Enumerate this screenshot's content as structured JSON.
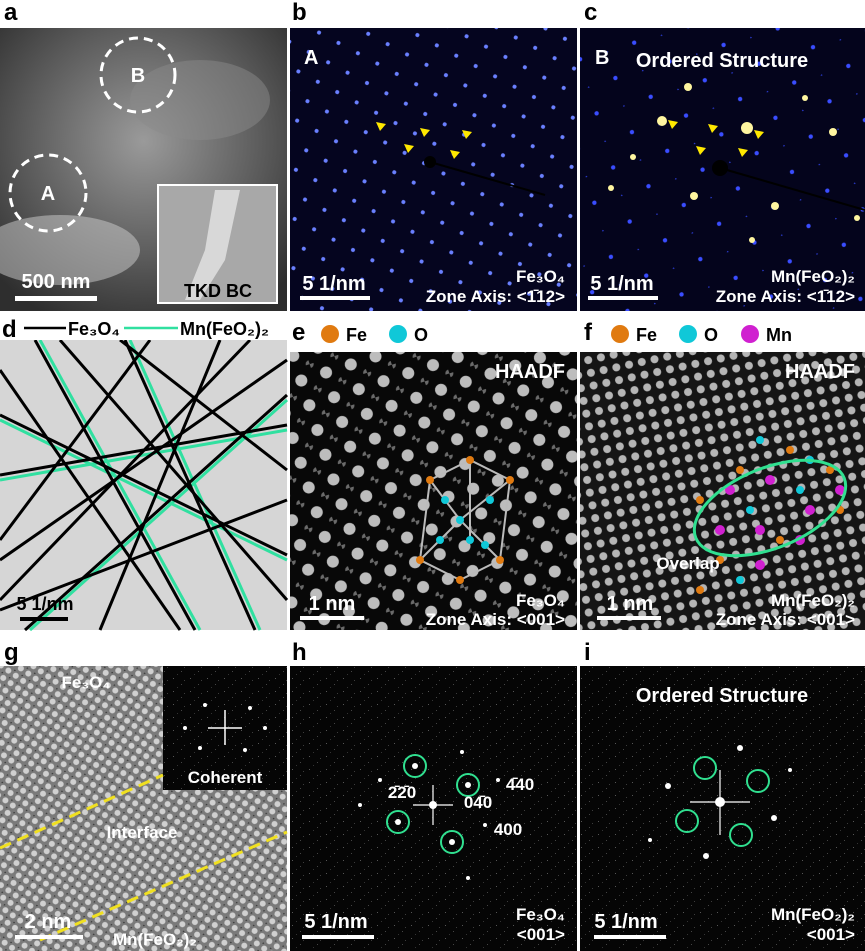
{
  "panels": {
    "a": {
      "label": "a",
      "circle_b": "B",
      "circle_a": "A",
      "scale_bar": "500 nm",
      "inset": "TKD BC"
    },
    "b": {
      "label": "b",
      "region": "A",
      "scale_bar": "5 1/nm",
      "phase": "Fe₃O₄",
      "zone_axis": "Zone Axis: <1̄12>"
    },
    "c": {
      "label": "c",
      "region": "B",
      "title": "Ordered Structure",
      "scale_bar": "5 1/nm",
      "phase": "Mn(FeO₂)₂",
      "zone_axis": "Zone Axis: <1̄12>"
    },
    "d": {
      "label": "d",
      "legend": [
        "Fe₃O₄",
        "Mn(FeO₂)₂"
      ],
      "scale_bar": "5 1/nm"
    },
    "e": {
      "label": "e",
      "legend": [
        "Fe",
        "O"
      ],
      "mode": "HAADF",
      "scale_bar": "1 nm",
      "phase": "Fe₃O₄",
      "zone_axis": "Zone Axis: <001>"
    },
    "f": {
      "label": "f",
      "legend": [
        "Fe",
        "O",
        "Mn"
      ],
      "mode": "HAADF",
      "annotation": "Overlap",
      "scale_bar": "1 nm",
      "phase": "Mn(FeO₂)₂",
      "zone_axis": "Zone Axis: <001>"
    },
    "g": {
      "label": "g",
      "top_phase": "Fe₃O₄",
      "inset": "Coherent",
      "interface": "Interface",
      "scale_bar": "2 nm",
      "bottom_phase": "Mn(FeO₂)₂"
    },
    "h": {
      "label": "h",
      "spots": [
        "04̄0",
        "4̄40",
        "2̄2̄0",
        "400"
      ],
      "scale_bar": "5 1/nm",
      "phase": "Fe₃O₄",
      "zone_axis": "<001>"
    },
    "i": {
      "label": "i",
      "title": "Ordered Structure",
      "scale_bar": "5 1/nm",
      "phase": "Mn(FeO₂)₂",
      "zone_axis": "<001>"
    }
  }
}
